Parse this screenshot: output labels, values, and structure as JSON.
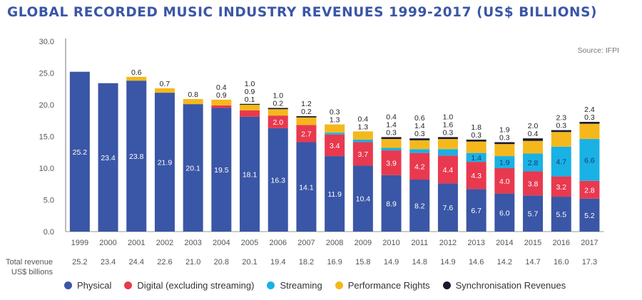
{
  "title": "GLOBAL RECORDED MUSIC INDUSTRY REVENUES 1999-2017 (US$ BILLIONS)",
  "source": "Source: IFPI",
  "total_label_line1": "Total revenue",
  "total_label_line2": "US$ billions",
  "colors": {
    "Physical": "#3a56a6",
    "Digital": "#e8394f",
    "Streaming": "#19b1e6",
    "Performance": "#f5b81c",
    "Sync": "#1a1a2e"
  },
  "chart_data": {
    "type": "bar",
    "stacked": true,
    "title": "GLOBAL RECORDED MUSIC INDUSTRY REVENUES 1999-2017 (US$ BILLIONS)",
    "ylim": [
      0,
      30
    ],
    "yticks": [
      "0.0",
      "5.0",
      "10.0",
      "15.0",
      "20.0",
      "25.0",
      "30.0"
    ],
    "categories": [
      "1999",
      "2000",
      "2001",
      "2002",
      "2003",
      "2004",
      "2005",
      "2006",
      "2007",
      "2008",
      "2009",
      "2010",
      "2011",
      "2012",
      "2013",
      "2014",
      "2015",
      "2016",
      "2017"
    ],
    "series": [
      {
        "name": "Physical",
        "values": [
          25.2,
          23.4,
          23.8,
          21.9,
          20.1,
          19.5,
          18.1,
          16.3,
          14.1,
          11.9,
          10.4,
          8.9,
          8.2,
          7.6,
          6.7,
          6.0,
          5.7,
          5.5,
          5.2
        ]
      },
      {
        "name": "Digital (excluding streaming)",
        "values": [
          0,
          0,
          0,
          0,
          0,
          0.4,
          1.0,
          2.0,
          2.7,
          3.4,
          3.7,
          3.9,
          4.2,
          4.4,
          4.3,
          4.0,
          3.8,
          3.2,
          2.8
        ]
      },
      {
        "name": "Streaming",
        "values": [
          0,
          0,
          0,
          0,
          0,
          0,
          0,
          0,
          0,
          0.3,
          0.4,
          0.4,
          0.6,
          1.0,
          1.4,
          1.9,
          2.8,
          4.7,
          6.6
        ]
      },
      {
        "name": "Performance Rights",
        "values": [
          0,
          0,
          0.6,
          0.7,
          0.8,
          0.9,
          0.9,
          1.0,
          1.2,
          1.3,
          1.3,
          1.4,
          1.4,
          1.6,
          1.8,
          1.9,
          2.0,
          2.3,
          2.4
        ]
      },
      {
        "name": "Synchronisation Revenues",
        "values": [
          0,
          0,
          0,
          0,
          0,
          0,
          0.1,
          0.2,
          0.2,
          0,
          0,
          0.3,
          0.3,
          0.3,
          0.3,
          0.3,
          0.4,
          0.3,
          0.3
        ]
      }
    ],
    "totals": [
      "25.2",
      "23.4",
      "24.4",
      "22.6",
      "21.0",
      "20.8",
      "20.1",
      "19.4",
      "18.2",
      "16.9",
      "15.8",
      "14.9",
      "14.8",
      "14.9",
      "14.6",
      "14.2",
      "14.7",
      "16.0",
      "17.3"
    ],
    "legend": [
      "Physical",
      "Digital (excluding streaming)",
      "Streaming",
      "Performance Rights",
      "Synchronisation Revenues"
    ]
  }
}
